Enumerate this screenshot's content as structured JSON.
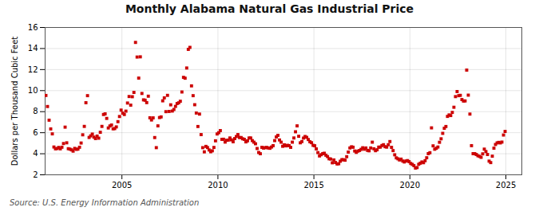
{
  "chart_data": {
    "type": "scatter",
    "title": "Monthly Alabama Natural Gas Industrial Price",
    "ylabel": "Dollars per Thousand Cubic Feet",
    "annotations": [
      "Source: U.S. Energy Information Administration"
    ],
    "color": "#cc0000",
    "marker": "square",
    "grid": true,
    "xlim": [
      2001.0,
      2025.83
    ],
    "xticks": [
      2005,
      2010,
      2015,
      2020,
      2025
    ],
    "ylim": [
      2,
      16
    ],
    "yticks": [
      2,
      4,
      6,
      8,
      10,
      12,
      14,
      16
    ],
    "x": [
      2001.041667,
      2001.125,
      2001.208333,
      2001.291667,
      2001.375,
      2001.458333,
      2001.541667,
      2001.625,
      2001.708333,
      2001.791667,
      2001.875,
      2001.958333,
      2002.041667,
      2002.125,
      2002.208333,
      2002.291667,
      2002.375,
      2002.458333,
      2002.541667,
      2002.625,
      2002.708333,
      2002.791667,
      2002.875,
      2002.958333,
      2003.041667,
      2003.125,
      2003.208333,
      2003.291667,
      2003.375,
      2003.458333,
      2003.541667,
      2003.625,
      2003.708333,
      2003.791667,
      2003.875,
      2003.958333,
      2004.041667,
      2004.125,
      2004.208333,
      2004.291667,
      2004.375,
      2004.458333,
      2004.541667,
      2004.625,
      2004.708333,
      2004.791667,
      2004.875,
      2004.958333,
      2005.041667,
      2005.125,
      2005.208333,
      2005.291667,
      2005.375,
      2005.458333,
      2005.541667,
      2005.625,
      2005.708333,
      2005.791667,
      2005.875,
      2005.958333,
      2006.041667,
      2006.125,
      2006.208333,
      2006.291667,
      2006.375,
      2006.458333,
      2006.541667,
      2006.625,
      2006.708333,
      2006.791667,
      2006.875,
      2006.958333,
      2007.041667,
      2007.125,
      2007.208333,
      2007.291667,
      2007.375,
      2007.458333,
      2007.541667,
      2007.625,
      2007.708333,
      2007.791667,
      2007.875,
      2007.958333,
      2008.041667,
      2008.125,
      2008.208333,
      2008.291667,
      2008.375,
      2008.458333,
      2008.541667,
      2008.625,
      2008.708333,
      2008.791667,
      2008.875,
      2008.958333,
      2009.041667,
      2009.125,
      2009.208333,
      2009.291667,
      2009.375,
      2009.458333,
      2009.541667,
      2009.625,
      2009.708333,
      2009.791667,
      2009.875,
      2009.958333,
      2010.041667,
      2010.125,
      2010.208333,
      2010.291667,
      2010.375,
      2010.458333,
      2010.541667,
      2010.625,
      2010.708333,
      2010.791667,
      2010.875,
      2010.958333,
      2011.041667,
      2011.125,
      2011.208333,
      2011.291667,
      2011.375,
      2011.458333,
      2011.541667,
      2011.625,
      2011.708333,
      2011.791667,
      2011.875,
      2011.958333,
      2012.041667,
      2012.125,
      2012.208333,
      2012.291667,
      2012.375,
      2012.458333,
      2012.541667,
      2012.625,
      2012.708333,
      2012.791667,
      2012.875,
      2012.958333,
      2013.041667,
      2013.125,
      2013.208333,
      2013.291667,
      2013.375,
      2013.458333,
      2013.541667,
      2013.625,
      2013.708333,
      2013.791667,
      2013.875,
      2013.958333,
      2014.041667,
      2014.125,
      2014.208333,
      2014.291667,
      2014.375,
      2014.458333,
      2014.541667,
      2014.625,
      2014.708333,
      2014.791667,
      2014.875,
      2014.958333,
      2015.041667,
      2015.125,
      2015.208333,
      2015.291667,
      2015.375,
      2015.458333,
      2015.541667,
      2015.625,
      2015.708333,
      2015.791667,
      2015.875,
      2015.958333,
      2016.041667,
      2016.125,
      2016.208333,
      2016.291667,
      2016.375,
      2016.458333,
      2016.541667,
      2016.625,
      2016.708333,
      2016.791667,
      2016.875,
      2016.958333,
      2017.041667,
      2017.125,
      2017.208333,
      2017.291667,
      2017.375,
      2017.458333,
      2017.541667,
      2017.625,
      2017.708333,
      2017.791667,
      2017.875,
      2017.958333,
      2018.041667,
      2018.125,
      2018.208333,
      2018.291667,
      2018.375,
      2018.458333,
      2018.541667,
      2018.625,
      2018.708333,
      2018.791667,
      2018.875,
      2018.958333,
      2019.041667,
      2019.125,
      2019.208333,
      2019.291667,
      2019.375,
      2019.458333,
      2019.541667,
      2019.625,
      2019.708333,
      2019.791667,
      2019.875,
      2019.958333,
      2020.041667,
      2020.125,
      2020.208333,
      2020.291667,
      2020.375,
      2020.458333,
      2020.541667,
      2020.625,
      2020.708333,
      2020.791667,
      2020.875,
      2020.958333,
      2021.041667,
      2021.125,
      2021.208333,
      2021.291667,
      2021.375,
      2021.458333,
      2021.541667,
      2021.625,
      2021.708333,
      2021.791667,
      2021.875,
      2021.958333,
      2022.041667,
      2022.125,
      2022.208333,
      2022.291667,
      2022.375,
      2022.458333,
      2022.541667,
      2022.625,
      2022.708333,
      2022.791667,
      2022.875,
      2022.958333,
      2023.041667,
      2023.125,
      2023.208333,
      2023.291667,
      2023.375,
      2023.458333,
      2023.541667,
      2023.625,
      2023.708333,
      2023.791667,
      2023.875,
      2023.958333,
      2024.041667,
      2024.125,
      2024.208333,
      2024.291667,
      2024.375,
      2024.458333,
      2024.541667,
      2024.625,
      2024.708333,
      2024.791667,
      2024.875,
      2024.958333
    ],
    "values": [
      9.54,
      8.49,
      7.19,
      6.36,
      5.89,
      4.64,
      4.47,
      4.5,
      4.6,
      4.47,
      4.62,
      4.97,
      6.53,
      5.04,
      4.48,
      4.44,
      4.37,
      4.25,
      4.51,
      4.42,
      4.44,
      4.62,
      5.02,
      5.8,
      6.6,
      8.85,
      9.52,
      5.55,
      5.7,
      5.87,
      5.58,
      5.44,
      5.68,
      5.48,
      6.04,
      6.6,
      7.73,
      7.79,
      7.36,
      6.45,
      6.64,
      6.73,
      6.37,
      6.39,
      6.55,
      7.05,
      7.54,
      8.15,
      7.86,
      7.73,
      8.05,
      8.82,
      9.44,
      8.62,
      9.42,
      9.83,
      14.58,
      13.19,
      11.19,
      13.21,
      9.73,
      9.12,
      9.09,
      8.86,
      9.47,
      7.42,
      7.21,
      7.41,
      5.54,
      4.58,
      6.65,
      7.44,
      7.5,
      9.03,
      9.31,
      8.0,
      9.55,
      8.02,
      8.65,
      8.06,
      8.21,
      8.5,
      8.77,
      8.84,
      8.99,
      9.87,
      11.26,
      11.18,
      12.15,
      13.92,
      14.11,
      10.45,
      9.52,
      8.66,
      7.87,
      6.59,
      7.77,
      5.82,
      4.58,
      4.18,
      4.7,
      4.59,
      4.36,
      4.19,
      4.28,
      4.6,
      5.23,
      5.88,
      6.0,
      6.2,
      5.37,
      5.38,
      5.11,
      5.28,
      5.3,
      5.5,
      5.32,
      5.14,
      5.44,
      5.64,
      5.82,
      5.54,
      5.54,
      5.42,
      5.37,
      5.13,
      5.23,
      5.5,
      5.5,
      5.25,
      5.1,
      4.95,
      4.5,
      4.12,
      4.0,
      4.61,
      4.54,
      4.58,
      4.6,
      4.55,
      4.52,
      4.64,
      4.77,
      5.25,
      5.6,
      5.75,
      5.31,
      5.1,
      4.71,
      4.85,
      4.75,
      4.8,
      4.77,
      4.61,
      5.1,
      5.5,
      6.09,
      6.65,
      5.66,
      5.04,
      5.16,
      5.49,
      5.64,
      5.56,
      5.35,
      5.14,
      5.05,
      4.8,
      4.76,
      4.46,
      4.11,
      3.79,
      3.91,
      4.01,
      4.05,
      3.86,
      3.73,
      3.52,
      3.5,
      3.14,
      3.41,
      3.17,
      3.03,
      3.05,
      3.29,
      3.44,
      3.43,
      3.39,
      3.72,
      4.16,
      4.55,
      4.66,
      4.62,
      4.26,
      4.13,
      4.25,
      4.31,
      4.42,
      4.57,
      4.43,
      4.55,
      4.32,
      4.28,
      4.55,
      5.1,
      4.47,
      4.29,
      4.38,
      4.63,
      4.63,
      4.78,
      4.86,
      4.67,
      4.63,
      4.86,
      5.16,
      4.61,
      4.3,
      3.9,
      3.61,
      3.52,
      3.41,
      3.49,
      3.31,
      3.22,
      3.31,
      3.35,
      3.25,
      3.08,
      2.99,
      2.87,
      2.64,
      2.69,
      3.0,
      3.1,
      3.22,
      3.15,
      3.34,
      3.62,
      4.01,
      4.1,
      6.46,
      4.75,
      4.43,
      4.52,
      4.64,
      5.09,
      5.42,
      5.94,
      6.42,
      6.59,
      7.55,
      7.69,
      7.63,
      7.93,
      8.42,
      9.43,
      9.91,
      9.52,
      9.55,
      9.15,
      9.01,
      9.02,
      11.95,
      9.57,
      7.77,
      4.77,
      4.01,
      4.01,
      3.93,
      3.81,
      3.75,
      3.66,
      3.99,
      4.44,
      4.21,
      3.93,
      3.3,
      3.16,
      3.77,
      4.53,
      4.88,
      5.03,
      5.08,
      5.03,
      5.11,
      5.78,
      6.12
    ]
  }
}
